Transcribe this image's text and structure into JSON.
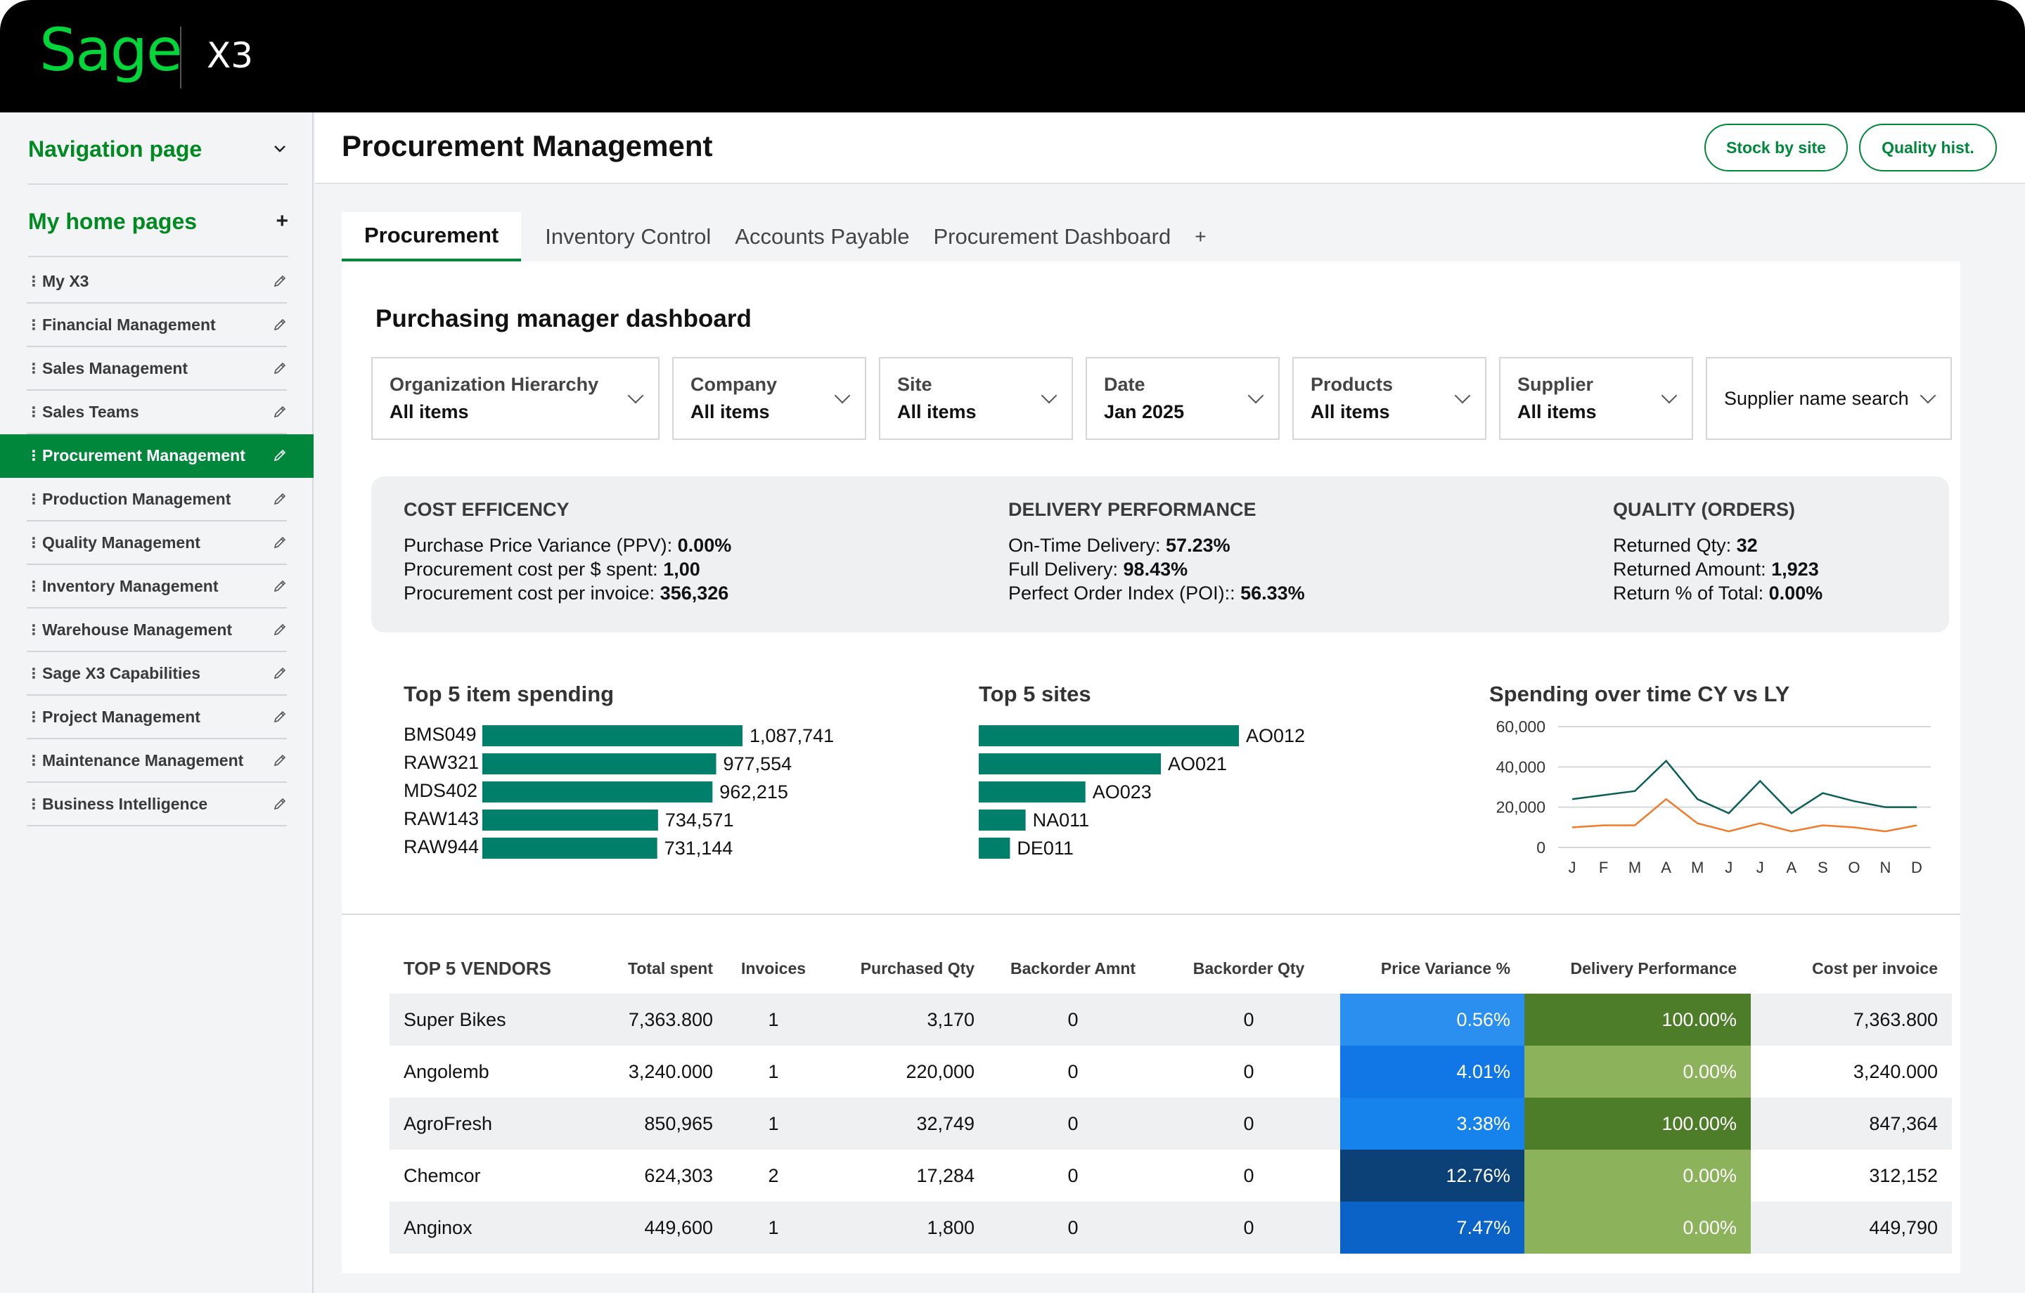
{
  "app": {
    "logo": "Sage",
    "product": "X3"
  },
  "sidebar": {
    "nav_page_label": "Navigation page",
    "home_pages_label": "My home pages",
    "items": [
      {
        "label": "My X3",
        "active": false
      },
      {
        "label": "Financial Management",
        "active": false
      },
      {
        "label": "Sales Management",
        "active": false
      },
      {
        "label": "Sales Teams",
        "active": false
      },
      {
        "label": "Procurement Management",
        "active": true
      },
      {
        "label": "Production Management",
        "active": false
      },
      {
        "label": "Quality Management",
        "active": false
      },
      {
        "label": "Inventory Management",
        "active": false
      },
      {
        "label": "Warehouse Management",
        "active": false
      },
      {
        "label": "Sage X3 Capabilities",
        "active": false
      },
      {
        "label": "Project Management",
        "active": false
      },
      {
        "label": "Maintenance Management",
        "active": false
      },
      {
        "label": "Business Intelligence",
        "active": false
      }
    ]
  },
  "header": {
    "title": "Procurement Management",
    "buttons": [
      "Stock by site",
      "Quality hist."
    ]
  },
  "tabs": [
    "Procurement",
    "Inventory Control",
    "Accounts Payable",
    "Procurement Dashboard",
    "+"
  ],
  "dashboard": {
    "title": "Purchasing manager dashboard",
    "filters": [
      {
        "label": "Organization Hierarchy",
        "value": "All items"
      },
      {
        "label": "Company",
        "value": "All items"
      },
      {
        "label": "Site",
        "value": "All items"
      },
      {
        "label": "Date",
        "value": "Jan 2025"
      },
      {
        "label": "Products",
        "value": "All items"
      },
      {
        "label": "Supplier",
        "value": "All items"
      }
    ],
    "supplier_search": "Supplier name search",
    "kpis": [
      {
        "heading": "COST EFFICENCY",
        "rows": [
          {
            "label": "Purchase Price Variance (PPV): ",
            "value": "0.00%"
          },
          {
            "label": "Procurement cost per $ spent: ",
            "value": "1,00"
          },
          {
            "label": "Procurement cost per invoice: ",
            "value": "356,326"
          }
        ]
      },
      {
        "heading": "DELIVERY PERFORMANCE",
        "rows": [
          {
            "label": "On-Time Delivery: ",
            "value": "57.23%"
          },
          {
            "label": "Full Delivery: ",
            "value": "98.43%"
          },
          {
            "label": "Perfect Order Index (POI):: ",
            "value": "56.33%"
          }
        ]
      },
      {
        "heading": "QUALITY (ORDERS)",
        "rows": [
          {
            "label": "Returned Qty: ",
            "value": "32"
          },
          {
            "label": "Returned Amount: ",
            "value": "1,923"
          },
          {
            "label": "Return % of Total: ",
            "value": "0.00%"
          }
        ]
      }
    ]
  },
  "chart_data": [
    {
      "type": "bar",
      "title": "Top 5 item spending",
      "orientation": "horizontal",
      "categories": [
        "BMS049",
        "RAW321",
        "MDS402",
        "RAW143",
        "RAW944"
      ],
      "values": [
        1087741,
        977554,
        962215,
        734571,
        731144
      ],
      "value_labels": [
        "1,087,741",
        "977,554",
        "962,215",
        "734,571",
        "731,144"
      ],
      "color": "#00806b"
    },
    {
      "type": "bar",
      "title": "Top 5 sites",
      "orientation": "horizontal",
      "categories": [
        "AO012",
        "AO021",
        "AO023",
        "NA011",
        "DE011"
      ],
      "values": [
        100,
        70,
        41,
        18,
        12
      ],
      "color": "#00806b"
    },
    {
      "type": "line",
      "title": "Spending over time CY vs LY",
      "x": [
        "J",
        "F",
        "M",
        "A",
        "M",
        "J",
        "J",
        "A",
        "S",
        "O",
        "N",
        "D"
      ],
      "yticks": [
        "60,000",
        "40,000",
        "20,000",
        "0"
      ],
      "ylim": [
        0,
        60000
      ],
      "series": [
        {
          "color": "#0b5e56",
          "values": [
            24000,
            26000,
            28000,
            43000,
            24000,
            17000,
            33000,
            17000,
            27000,
            23000,
            20000,
            20000
          ]
        },
        {
          "color": "#f07b2a",
          "values": [
            10000,
            11000,
            11000,
            24000,
            12000,
            8000,
            12000,
            8000,
            11000,
            10000,
            8000,
            11000
          ]
        }
      ]
    }
  ],
  "vendors": {
    "title": "TOP 5 VENDORS",
    "columns": [
      "Total spent",
      "Invoices",
      "Purchased Qty",
      "Backorder Amnt",
      "Backorder Qty",
      "Price Variance %",
      "Delivery Performance",
      "Cost per invoice"
    ],
    "rows": [
      {
        "name": "Super Bikes",
        "total": "7,363.800",
        "invoices": "1",
        "qty": "3,170",
        "bo_amt": "0",
        "bo_qty": "0",
        "pv": "0.56%",
        "pv_color": "#2b8ff0",
        "dp": "100.00%",
        "dp_color": "#4e7d2a",
        "cpi": "7,363.800"
      },
      {
        "name": "Angolemb",
        "total": "3,240.000",
        "invoices": "1",
        "qty": "220,000",
        "bo_amt": "0",
        "bo_qty": "0",
        "pv": "4.01%",
        "pv_color": "#1177e6",
        "dp": "0.00%",
        "dp_color": "#8cb35c",
        "cpi": "3,240.000"
      },
      {
        "name": "AgroFresh",
        "total": "850,965",
        "invoices": "1",
        "qty": "32,749",
        "bo_amt": "0",
        "bo_qty": "0",
        "pv": "3.38%",
        "pv_color": "#1683ec",
        "dp": "100.00%",
        "dp_color": "#4e7d2a",
        "cpi": "847,364"
      },
      {
        "name": "Chemcor",
        "total": "624,303",
        "invoices": "2",
        "qty": "17,284",
        "bo_amt": "0",
        "bo_qty": "0",
        "pv": "12.76%",
        "pv_color": "#0c4178",
        "dp": "0.00%",
        "dp_color": "#8cb35c",
        "cpi": "312,152"
      },
      {
        "name": "Anginox",
        "total": "449,600",
        "invoices": "1",
        "qty": "1,800",
        "bo_amt": "0",
        "bo_qty": "0",
        "pv": "7.47%",
        "pv_color": "#0b63c8",
        "dp": "0.00%",
        "dp_color": "#8cb35c",
        "cpi": "449,790"
      }
    ]
  }
}
